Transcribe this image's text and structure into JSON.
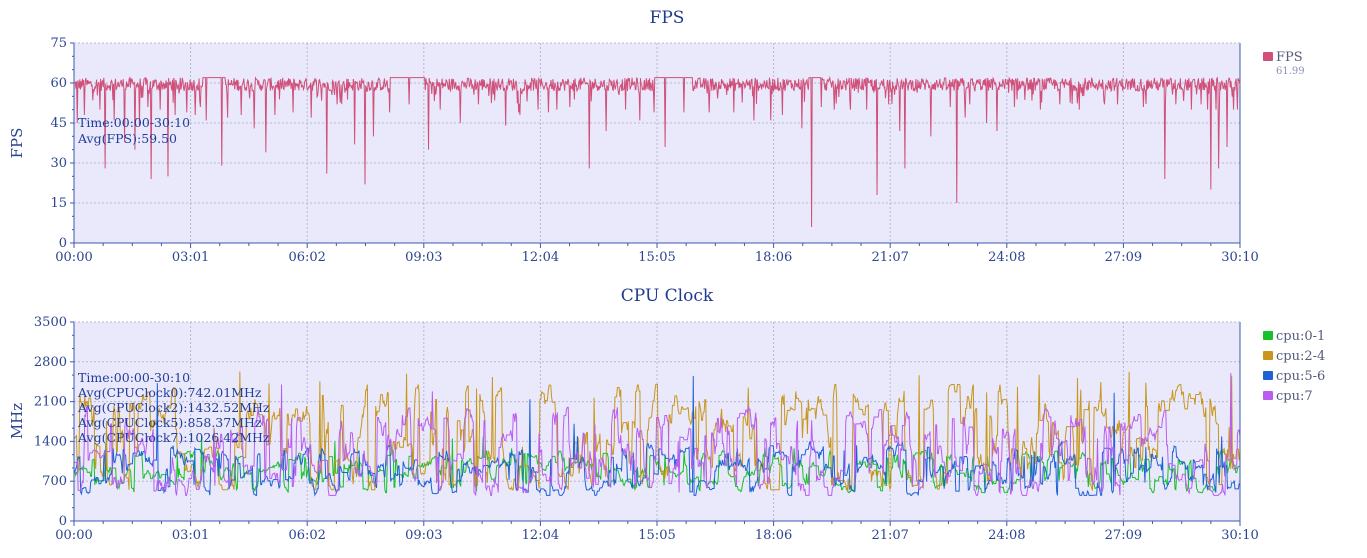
{
  "chart_data": [
    {
      "type": "line",
      "title": "FPS",
      "ylabel": "FPS",
      "xlabel": "",
      "ylim": [
        0,
        75
      ],
      "yticks": [
        0,
        15,
        30,
        45,
        60,
        75
      ],
      "x_range_seconds": [
        0,
        1810
      ],
      "x_tick_labels": [
        "00:00",
        "03:01",
        "06:02",
        "09:03",
        "12:04",
        "15:05",
        "18:06",
        "21:07",
        "24:08",
        "27:09",
        "30:10"
      ],
      "annotation": [
        "Time:00:00-30:10",
        "Avg(FPS):59.50"
      ],
      "series": [
        {
          "name": "FPS",
          "color": "#d0507a",
          "legend_value": "61.99",
          "baseline_min": 57,
          "baseline_max": 62,
          "dips": [
            [
              5,
              45
            ],
            [
              16,
              48
            ],
            [
              40,
              50
            ],
            [
              48,
              28
            ],
            [
              62,
              46
            ],
            [
              78,
              38
            ],
            [
              95,
              35
            ],
            [
              102,
              44
            ],
            [
              115,
              51
            ],
            [
              120,
              24
            ],
            [
              134,
              50
            ],
            [
              146,
              25
            ],
            [
              157,
              48
            ],
            [
              175,
              49
            ],
            [
              188,
              48
            ],
            [
              196,
              51
            ],
            [
              205,
              46
            ],
            [
              229,
              29
            ],
            [
              238,
              47
            ],
            [
              260,
              48
            ],
            [
              280,
              43
            ],
            [
              298,
              34
            ],
            [
              312,
              48
            ],
            [
              340,
              49
            ],
            [
              368,
              47
            ],
            [
              392,
              26
            ],
            [
              408,
              52
            ],
            [
              436,
              37
            ],
            [
              452,
              22
            ],
            [
              465,
              40
            ],
            [
              490,
              49
            ],
            [
              520,
              52
            ],
            [
              550,
              35
            ],
            [
              568,
              50
            ],
            [
              600,
              45
            ],
            [
              628,
              52
            ],
            [
              670,
              44
            ],
            [
              690,
              49
            ],
            [
              692,
              48
            ],
            [
              720,
              50
            ],
            [
              736,
              49
            ],
            [
              750,
              50
            ],
            [
              770,
              51
            ],
            [
              800,
              28
            ],
            [
              826,
              42
            ],
            [
              856,
              50
            ],
            [
              878,
              46
            ],
            [
              900,
              49
            ],
            [
              918,
              36
            ],
            [
              947,
              49
            ],
            [
              986,
              49
            ],
            [
              1024,
              49
            ],
            [
              1055,
              46
            ],
            [
              1082,
              46
            ],
            [
              1100,
              48
            ],
            [
              1130,
              43
            ],
            [
              1145,
              6
            ],
            [
              1160,
              51
            ],
            [
              1180,
              50
            ],
            [
              1205,
              50
            ],
            [
              1230,
              50
            ],
            [
              1247,
              18
            ],
            [
              1265,
              52
            ],
            [
              1282,
              42
            ],
            [
              1290,
              28
            ],
            [
              1330,
              40
            ],
            [
              1360,
              51
            ],
            [
              1370,
              15
            ],
            [
              1383,
              47
            ],
            [
              1390,
              52
            ],
            [
              1417,
              45
            ],
            [
              1433,
              42
            ],
            [
              1460,
              51
            ],
            [
              1500,
              50
            ],
            [
              1530,
              52
            ],
            [
              1560,
              50
            ],
            [
              1600,
              52
            ],
            [
              1620,
              52
            ],
            [
              1660,
              51
            ],
            [
              1693,
              24
            ],
            [
              1710,
              52
            ],
            [
              1735,
              50
            ],
            [
              1750,
              52
            ],
            [
              1760,
              50
            ],
            [
              1765,
              20
            ],
            [
              1773,
              50
            ],
            [
              1777,
              28
            ],
            [
              1778,
              48
            ],
            [
              1790,
              36
            ],
            [
              1800,
              50
            ],
            [
              1806,
              50
            ]
          ],
          "steady_segments": [
            [
              200,
              235
            ],
            [
              490,
              545
            ],
            [
              900,
              960
            ],
            [
              1140,
              1162
            ]
          ],
          "steady_value": 62
        }
      ]
    },
    {
      "type": "line",
      "title": "CPU Clock",
      "ylabel": "MHz",
      "xlabel": "",
      "ylim": [
        0,
        3500
      ],
      "yticks": [
        0,
        700,
        1400,
        2100,
        2800,
        3500
      ],
      "x_range_seconds": [
        0,
        1810
      ],
      "x_tick_labels": [
        "00:00",
        "03:01",
        "06:02",
        "09:03",
        "12:04",
        "15:05",
        "18:06",
        "21:07",
        "24:08",
        "27:09",
        "30:10"
      ],
      "annotation": [
        "Time:00:00-30:10",
        "Avg(CPUClock0):742.01MHz",
        "Avg(CPUClock2):1432.52MHz",
        "Avg(CPUClock5):858.37MHz",
        "Avg(CPUClock7):1026.42MHz"
      ],
      "series": [
        {
          "name": "cpu:0-1",
          "color": "#17c12a",
          "avg": 742.01,
          "typical_min": 550,
          "typical_max": 1200,
          "peak": 1500
        },
        {
          "name": "cpu:2-4",
          "color": "#c8961c",
          "avg": 1432.52,
          "typical_min": 600,
          "typical_max": 2300,
          "peak": 2700
        },
        {
          "name": "cpu:5-6",
          "color": "#1f62d6",
          "avg": 858.37,
          "typical_min": 500,
          "typical_max": 1300,
          "peak": 2700
        },
        {
          "name": "cpu:7",
          "color": "#bb5cf0",
          "avg": 1026.42,
          "typical_min": 500,
          "typical_max": 1900,
          "peak": 2750
        }
      ]
    }
  ]
}
